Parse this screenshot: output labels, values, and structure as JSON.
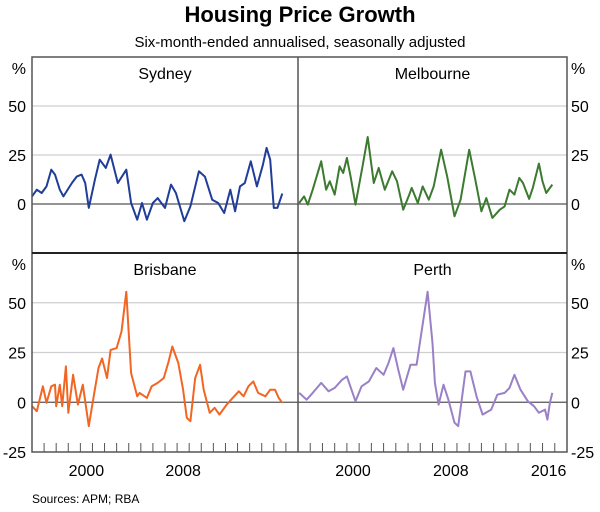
{
  "chart_data": {
    "type": "line",
    "title": "Housing Price Growth",
    "subtitle": "Six-month-ended annualised, seasonally adjusted",
    "source": "Sources:   APM; RBA",
    "unit_label": "%",
    "xlim": [
      1996,
      2018
    ],
    "ylim": [
      -25,
      75
    ],
    "grid": true,
    "x_tick_labels_left": [
      "2000",
      "2008"
    ],
    "x_tick_labels_right": [
      "2000",
      "2008",
      "2016"
    ],
    "y_ticks_top": [
      "50",
      "25",
      "0"
    ],
    "y_ticks_bottom": [
      "50",
      "25",
      "0",
      "-25"
    ],
    "panels": [
      {
        "name": "Sydney",
        "color": "#1f3d99",
        "x": [
          1996.0,
          1996.4,
          1996.8,
          1997.2,
          1997.6,
          1997.9,
          1998.3,
          1998.6,
          1999.3,
          1999.7,
          2000.1,
          2000.4,
          2000.7,
          2001.2,
          2001.6,
          2002.1,
          2002.5,
          2003.1,
          2003.8,
          2004.2,
          2004.7,
          2005.1,
          2005.5,
          2006.0,
          2006.4,
          2007.0,
          2007.5,
          2007.9,
          2008.6,
          2009.1,
          2009.8,
          2010.3,
          2010.9,
          2011.4,
          2011.9,
          2012.4,
          2012.8,
          2013.2,
          2013.6,
          2014.1,
          2014.6,
          2015.1,
          2015.4,
          2015.7,
          2016.0,
          2016.3,
          2016.7
        ],
        "y": [
          3.9,
          7.3,
          5.6,
          9,
          17.5,
          15,
          7.3,
          3.9,
          10.7,
          14,
          15,
          10.7,
          -2,
          12.4,
          22.6,
          18.4,
          25.2,
          10.7,
          17.5,
          0.5,
          -8,
          0.5,
          -8,
          0.5,
          3,
          -2,
          9.9,
          5.6,
          -8.8,
          -1.2,
          16.7,
          14,
          2.2,
          0.5,
          -4.6,
          7.3,
          -3.7,
          9,
          10.7,
          21.8,
          9,
          20,
          28.6,
          22.6,
          -2,
          -2,
          5.3
        ]
      },
      {
        "name": "Melbourne",
        "color": "#3b7a2f",
        "x": [
          1996.1,
          1996.5,
          1996.8,
          1997.2,
          1997.9,
          1998.3,
          1998.6,
          1999.0,
          1999.4,
          1999.7,
          2000.0,
          2000.3,
          2000.7,
          2001.3,
          2001.7,
          2002.2,
          2002.6,
          2003.1,
          2003.7,
          2004.1,
          2004.6,
          2005.1,
          2005.3,
          2005.8,
          2006.2,
          2006.7,
          2007.1,
          2007.7,
          2008.2,
          2008.8,
          2009.3,
          2010.0,
          2010.5,
          2011.0,
          2011.4,
          2011.9,
          2012.5,
          2012.9,
          2013.3,
          2013.7,
          2014.1,
          2014.4,
          2014.9,
          2015.2,
          2015.7,
          2016.0,
          2016.3,
          2016.8
        ],
        "y": [
          0.5,
          3.9,
          -0.3,
          7.3,
          21.8,
          7.3,
          11.6,
          4.8,
          19.2,
          15.8,
          23.5,
          14,
          -0.3,
          20,
          34.2,
          10.7,
          18.4,
          7.3,
          16.7,
          11.6,
          -2.9,
          4.8,
          8.2,
          0.5,
          9,
          2.2,
          9,
          27.7,
          14,
          -6.3,
          2.2,
          27.7,
          12.4,
          -3.7,
          3,
          -7.1,
          -2.9,
          -1.2,
          7.3,
          4.8,
          13.3,
          10.7,
          2.6,
          8.2,
          20.6,
          11.6,
          5.6,
          9.9
        ]
      },
      {
        "name": "Brisbane",
        "color": "#f26522",
        "x": [
          1996.0,
          1996.4,
          1996.9,
          1997.2,
          1997.6,
          1997.9,
          1998.0,
          1998.3,
          1998.5,
          1998.8,
          1999.0,
          1999.4,
          1999.8,
          2000.2,
          2000.7,
          2001.1,
          2001.5,
          2001.8,
          2002.2,
          2002.5,
          2003.0,
          2003.4,
          2003.8,
          2004.2,
          2004.7,
          2004.9,
          2005.5,
          2005.9,
          2006.4,
          2006.9,
          2007.3,
          2007.6,
          2008.1,
          2008.5,
          2008.8,
          2009.1,
          2009.5,
          2009.9,
          2010.2,
          2010.7,
          2011.1,
          2011.5,
          2012.1,
          2012.6,
          2013.1,
          2013.5,
          2013.9,
          2014.3,
          2014.7,
          2015.3,
          2015.7,
          2016.1,
          2016.4,
          2016.7
        ],
        "y": [
          -2,
          -4.5,
          8,
          -0.3,
          8,
          8.8,
          -2,
          8.8,
          -2,
          18,
          -5.3,
          13.8,
          -1.2,
          8.8,
          -12,
          3,
          17.2,
          22,
          12.2,
          26.3,
          27.2,
          35.5,
          55.5,
          14.7,
          3,
          4.7,
          2.2,
          8,
          9.7,
          12.2,
          20.5,
          28,
          19.7,
          6.3,
          -7.8,
          -9.5,
          12.2,
          18.8,
          6.3,
          -5.3,
          -2.8,
          -6.2,
          -1.2,
          2.2,
          5.5,
          3,
          8,
          10.5,
          4.7,
          3,
          6.3,
          6.3,
          2.2,
          -0.3
        ]
      },
      {
        "name": "Perth",
        "color": "#9a80c6",
        "x": [
          1996.1,
          1996.7,
          1997.2,
          1997.9,
          1998.5,
          1999.0,
          1999.6,
          2000.0,
          2000.7,
          2001.2,
          2001.8,
          2002.4,
          2003.0,
          2003.4,
          2003.8,
          2004.2,
          2004.6,
          2005.2,
          2005.7,
          2006.0,
          2006.6,
          2007.0,
          2007.2,
          2007.5,
          2007.9,
          2008.3,
          2008.8,
          2009.1,
          2009.7,
          2010.1,
          2010.6,
          2011.1,
          2011.8,
          2012.3,
          2012.9,
          2013.3,
          2013.7,
          2014.2,
          2014.8,
          2015.3,
          2015.7,
          2016.2,
          2016.4,
          2016.6,
          2016.8
        ],
        "y": [
          4.7,
          1.3,
          4.7,
          9.7,
          5.5,
          7.2,
          11.3,
          13,
          0.5,
          8,
          10.5,
          17.2,
          13.8,
          19.7,
          27.2,
          16.3,
          6.3,
          18.8,
          18.8,
          31.3,
          55.5,
          29.7,
          9.7,
          -1.2,
          8.8,
          1.3,
          -10.3,
          -12,
          15.5,
          15.5,
          3,
          -6.2,
          -3.7,
          3.8,
          4.7,
          7.2,
          13.8,
          6.3,
          0.5,
          -2,
          -5.3,
          -3.7,
          -8.7,
          -0.3,
          4.7
        ]
      }
    ]
  }
}
